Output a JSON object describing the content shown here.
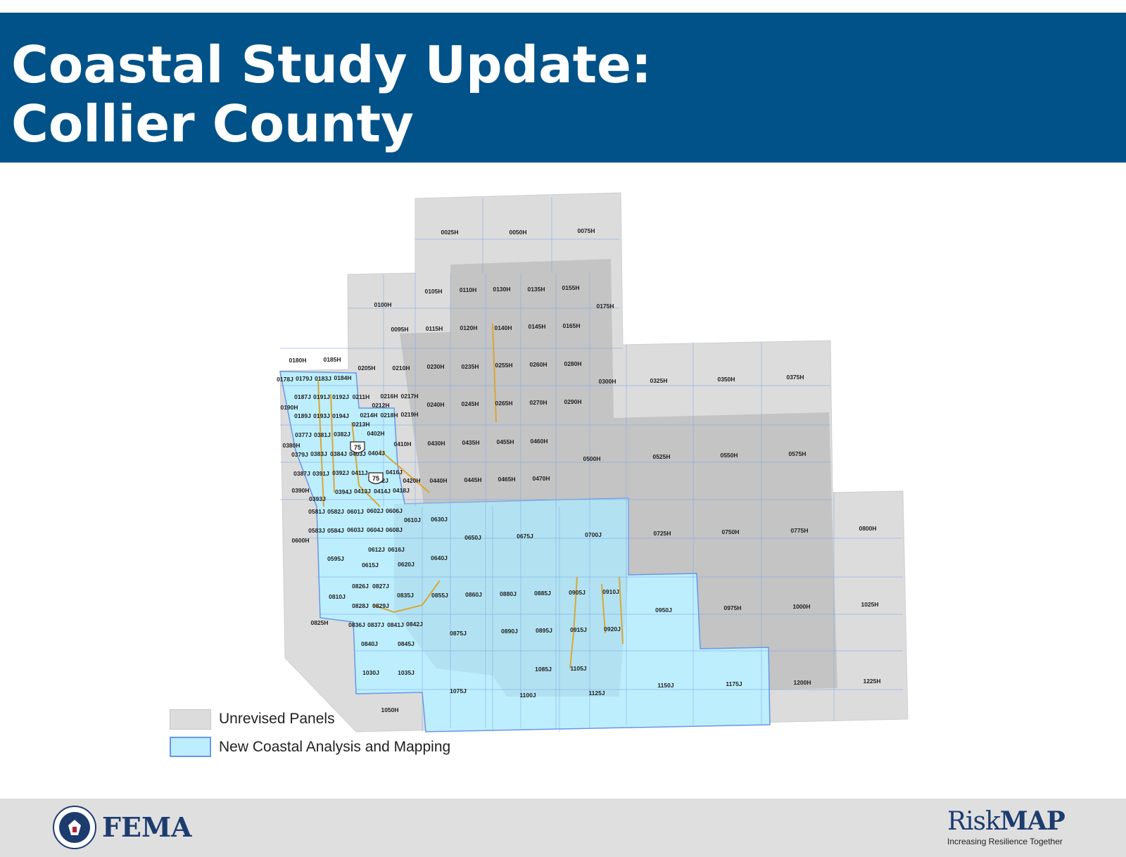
{
  "header": {
    "title_line1": "Coastal Study Update:",
    "title_line2": "Collier County",
    "band_color": "#005288"
  },
  "legend": [
    {
      "label": "Unrevised Panels",
      "color": "#dcdcdc"
    },
    {
      "label": "New Coastal Analysis and Mapping",
      "color": "#bdeefd"
    }
  ],
  "map": {
    "highway_shield": "75",
    "panel_labels": [
      "0025H",
      "0050H",
      "0075H",
      "0100H",
      "0105H",
      "0110H",
      "0130H",
      "0135H",
      "0155H",
      "0175H",
      "0095H",
      "0115H",
      "0120H",
      "0140H",
      "0145H",
      "0165H",
      "0180H",
      "0185H",
      "0205H",
      "0210H",
      "0230H",
      "0235H",
      "0255H",
      "0260H",
      "0280H",
      "0300H",
      "0325H",
      "0350H",
      "0375H",
      "0178J",
      "0179J",
      "0183J",
      "0184H",
      "0187J",
      "0191J",
      "0192J",
      "0211H",
      "0216H",
      "0217H",
      "0190H",
      "0212H",
      "0240H",
      "0245H",
      "0265H",
      "0270H",
      "0290H",
      "0189J",
      "0193J",
      "0194J",
      "0214H",
      "0218H",
      "0219H",
      "0213H",
      "0377J",
      "0381J",
      "0382J",
      "0402H",
      "0380H",
      "0410H",
      "0430H",
      "0435H",
      "0455H",
      "0460H",
      "0379J",
      "0383J",
      "0384J",
      "0403J",
      "0404J",
      "0500H",
      "0525H",
      "0550H",
      "0575H",
      "0387J",
      "0391J",
      "0392J",
      "0411J",
      "0416J",
      "0412J",
      "0420H",
      "0440H",
      "0445H",
      "0465H",
      "0470H",
      "0390H",
      "0394J",
      "0413J",
      "0414J",
      "0418J",
      "0393J",
      "0581J",
      "0582J",
      "0601J",
      "0602J",
      "0606J",
      "0610J",
      "0630J",
      "0583J",
      "0584J",
      "0603J",
      "0604J",
      "0608J",
      "0650J",
      "0675J",
      "0700J",
      "0725H",
      "0750H",
      "0775H",
      "0800H",
      "0600H",
      "0612J",
      "0616J",
      "0595J",
      "0640J",
      "0615J",
      "0620J",
      "0826J",
      "0827J",
      "0810J",
      "0835J",
      "0855J",
      "0860J",
      "0880J",
      "0885J",
      "0905J",
      "0910J",
      "0828J",
      "0829J",
      "0950J",
      "0975H",
      "1000H",
      "1025H",
      "0825H",
      "0836J",
      "0837J",
      "0841J",
      "0842J",
      "0875J",
      "0890J",
      "0895J",
      "0915J",
      "0920J",
      "0840J",
      "0845J",
      "1085J",
      "1105J",
      "1030J",
      "1035J",
      "1075J",
      "1100J",
      "1125J",
      "1150J",
      "1175J",
      "1200H",
      "1225H",
      "1050H"
    ]
  },
  "footer": {
    "agency": "FEMA",
    "brand_risk": "Risk",
    "brand_map": "MAP",
    "brand_tagline": "Increasing Resilience Together"
  }
}
